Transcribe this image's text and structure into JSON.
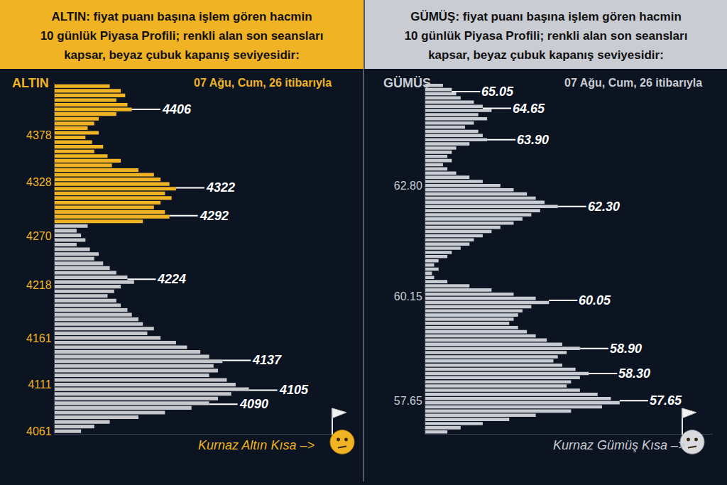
{
  "chart_data": [
    {
      "type": "bar",
      "orientation": "horizontal",
      "title": "ALTIN",
      "header": [
        "ALTIN: fiyat puanı başına işlem gören hacmin",
        "10 günlük Piyasa Profili; renkli alan son seansları",
        "kapsar, beyaz çubuk kapanış seviyesidir:"
      ],
      "date": "07 Ağu, Cum, 26 itibarıyla",
      "footer": "Kurnaz Altın Kısa –>",
      "y": [
        4431,
        4426,
        4421,
        4416,
        4411,
        4406,
        4401,
        4396,
        4391,
        4386,
        4381,
        4376,
        4371,
        4366,
        4361,
        4356,
        4351,
        4346,
        4341,
        4336,
        4331,
        4326,
        4321,
        4316,
        4311,
        4306,
        4301,
        4296,
        4291,
        4286,
        4281,
        4276,
        4271,
        4266,
        4261,
        4256,
        4251,
        4246,
        4241,
        4236,
        4231,
        4226,
        4221,
        4216,
        4211,
        4206,
        4201,
        4196,
        4191,
        4186,
        4181,
        4176,
        4171,
        4166,
        4161,
        4156,
        4151,
        4146,
        4141,
        4136,
        4131,
        4126,
        4121,
        4116,
        4111,
        4106,
        4101,
        4096,
        4091,
        4086,
        4081,
        4076,
        4071,
        4066,
        4061
      ],
      "values": [
        25,
        30,
        32,
        28,
        33,
        35,
        28,
        20,
        18,
        15,
        20,
        14,
        17,
        22,
        18,
        24,
        30,
        26,
        38,
        45,
        48,
        52,
        55,
        50,
        53,
        48,
        45,
        50,
        52,
        40,
        15,
        10,
        12,
        14,
        10,
        16,
        20,
        18,
        22,
        25,
        28,
        33,
        36,
        30,
        27,
        24,
        28,
        30,
        33,
        35,
        38,
        40,
        45,
        42,
        48,
        55,
        60,
        66,
        70,
        76,
        72,
        74,
        70,
        78,
        82,
        88,
        80,
        74,
        70,
        62,
        50,
        38,
        25,
        18,
        12
      ],
      "colors": [
        "#f0b323",
        "#f0b323",
        "#f0b323",
        "#f0b323",
        "#f0b323",
        "#f0b323",
        "#f0b323",
        "#f0b323",
        "#f0b323",
        "#f0b323",
        "#f0b323",
        "#f0b323",
        "#f0b323",
        "#f0b323",
        "#f0b323",
        "#f0b323",
        "#f0b323",
        "#f0b323",
        "#f0b323",
        "#f0b323",
        "#f0b323",
        "#f0b323",
        "#f0b323",
        "#f0b323",
        "#f0b323",
        "#f0b323",
        "#f0b323",
        "#f0b323",
        "#f0b323",
        "#f0b323",
        "#c6c8cc",
        "#c6c8cc",
        "#c6c8cc",
        "#c6c8cc",
        "#c6c8cc",
        "#c6c8cc",
        "#c6c8cc",
        "#c6c8cc",
        "#c6c8cc",
        "#c6c8cc",
        "#c6c8cc",
        "#c6c8cc",
        "#c6c8cc",
        "#c6c8cc",
        "#c6c8cc",
        "#c6c8cc",
        "#c6c8cc",
        "#c6c8cc",
        "#c6c8cc",
        "#c6c8cc",
        "#c6c8cc",
        "#c6c8cc",
        "#c6c8cc",
        "#c6c8cc",
        "#c6c8cc",
        "#c6c8cc",
        "#c6c8cc",
        "#c6c8cc",
        "#c6c8cc",
        "#c6c8cc",
        "#c6c8cc",
        "#c6c8cc",
        "#c6c8cc",
        "#c6c8cc",
        "#c6c8cc",
        "#c6c8cc",
        "#c6c8cc",
        "#c6c8cc",
        "#c6c8cc",
        "#c6c8cc",
        "#c6c8cc",
        "#c6c8cc",
        "#c6c8cc",
        "#c6c8cc",
        "#c6c8cc"
      ],
      "xlim": [
        0,
        130
      ],
      "ylim": [
        4058,
        4434
      ],
      "yticks": [
        4061,
        4111,
        4161,
        4218,
        4270,
        4328,
        4378
      ],
      "tick_labels": "y",
      "grid": false,
      "annotations": [
        {
          "value": 4406,
          "label": "4406"
        },
        {
          "value": 4322,
          "label": "4322"
        },
        {
          "value": 4292,
          "label": "4292"
        },
        {
          "value": 4224,
          "label": "4224"
        },
        {
          "value": 4137,
          "label": "4137"
        },
        {
          "value": 4105,
          "label": "4105"
        },
        {
          "value": 4090,
          "label": "4090"
        }
      ]
    },
    {
      "type": "bar",
      "orientation": "horizontal",
      "title": "GÜMÜŞ",
      "header": [
        "GÜMÜŞ: fiyat puanı başına işlem gören hacmin",
        "10 günlük Piyasa Profili; renkli alan son seansları",
        "kapsar, beyaz çubuk kapanış seviyesidir:"
      ],
      "date": "07 Ağu, Cum, 26 itibarıyla",
      "footer": "Kurnaz Gümüş Kısa –>",
      "y": [
        65.2,
        65.1,
        65.0,
        64.9,
        64.8,
        64.7,
        64.6,
        64.5,
        64.4,
        64.3,
        64.2,
        64.1,
        64.0,
        63.9,
        63.8,
        63.7,
        63.6,
        63.5,
        63.4,
        63.3,
        63.2,
        63.1,
        63.0,
        62.9,
        62.8,
        62.7,
        62.6,
        62.5,
        62.4,
        62.3,
        62.2,
        62.1,
        62.0,
        61.9,
        61.8,
        61.7,
        61.6,
        61.5,
        61.4,
        61.3,
        61.2,
        61.1,
        61.0,
        60.9,
        60.8,
        60.7,
        60.6,
        60.5,
        60.4,
        60.3,
        60.2,
        60.1,
        60.0,
        59.9,
        59.8,
        59.7,
        59.6,
        59.5,
        59.4,
        59.3,
        59.2,
        59.1,
        59.0,
        58.9,
        58.8,
        58.7,
        58.6,
        58.5,
        58.4,
        58.3,
        58.2,
        58.1,
        58.0,
        57.9,
        57.8,
        57.7,
        57.6,
        57.5,
        57.4,
        57.3,
        57.2,
        57.1,
        57.0,
        56.9
      ],
      "values": [
        8,
        12,
        14,
        16,
        22,
        26,
        30,
        24,
        28,
        22,
        18,
        24,
        26,
        28,
        20,
        14,
        12,
        10,
        12,
        8,
        10,
        14,
        20,
        26,
        34,
        40,
        46,
        50,
        54,
        60,
        52,
        48,
        44,
        40,
        34,
        30,
        26,
        22,
        20,
        16,
        12,
        10,
        6,
        4,
        6,
        3,
        4,
        10,
        20,
        30,
        40,
        50,
        56,
        48,
        44,
        42,
        40,
        38,
        42,
        46,
        50,
        55,
        62,
        70,
        64,
        60,
        58,
        62,
        68,
        74,
        70,
        66,
        64,
        70,
        78,
        84,
        88,
        80,
        66,
        50,
        38,
        26,
        16,
        10
      ],
      "color": "#c9ccd2",
      "xlim": [
        0,
        130
      ],
      "ylim": [
        56.85,
        65.25
      ],
      "yticks": [
        {
          "value": 57.65,
          "label": "57.65"
        },
        {
          "value": 60.15,
          "label": "60.15"
        },
        {
          "value": 62.8,
          "label": "62.80"
        }
      ],
      "tick_labels": "y",
      "grid": false,
      "annotations": [
        {
          "value": 65.05,
          "label": "65.05"
        },
        {
          "value": 64.65,
          "label": "64.65"
        },
        {
          "value": 63.9,
          "label": "63.90"
        },
        {
          "value": 62.3,
          "label": "62.30"
        },
        {
          "value": 60.05,
          "label": "60.05"
        },
        {
          "value": 58.9,
          "label": "58.90"
        },
        {
          "value": 58.3,
          "label": "58.30"
        },
        {
          "value": 57.65,
          "label": "57.65"
        }
      ]
    }
  ]
}
